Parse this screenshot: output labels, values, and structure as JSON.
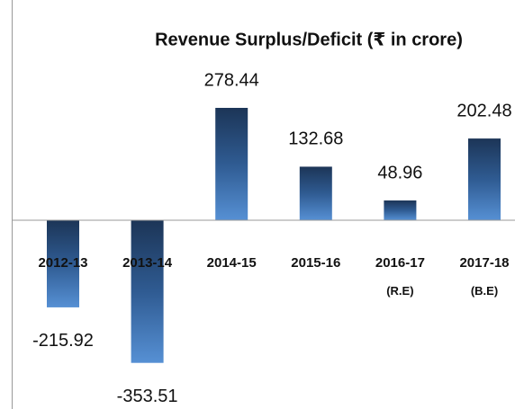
{
  "chart_data": {
    "type": "bar",
    "title": "Revenue Surplus/Deficit (₹ in crore)",
    "categories": [
      "2012-13",
      "2013-14",
      "2014-15",
      "2015-16",
      "2016-17 (R.E)",
      "2017-18 (B.E)"
    ],
    "values": [
      -215.92,
      -353.51,
      278.44,
      132.68,
      48.96,
      202.48
    ],
    "color": "#2f5b92"
  }
}
